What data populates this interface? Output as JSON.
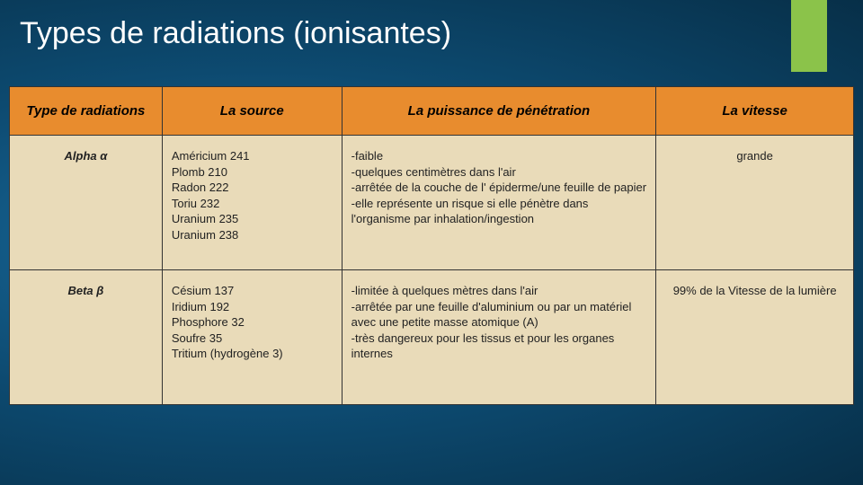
{
  "slide": {
    "title": "Types de radiations (ionisantes)",
    "accent_color": "#8bc34a"
  },
  "table": {
    "headers": {
      "type": "Type de radiations",
      "source": "La source",
      "penetration": "La puissance de pénétration",
      "vitesse": "La vitesse"
    },
    "rows": [
      {
        "type": "Alpha α",
        "source": "Américium 241\nPlomb 210\nRadon 222\nToriu 232\nUranium 235\nUranium 238",
        "penetration": "-faible\n-quelques centimètres dans l'air\n-arrêtée de la couche de l' épiderme/une feuille de papier\n-elle représente un risque si elle pénètre dans l'organisme par inhalation/ingestion",
        "vitesse": "grande"
      },
      {
        "type": "Beta β",
        "source": "Césium 137\nIridium 192\nPhosphore 32\nSoufre 35\nTritium (hydrogène 3)",
        "penetration": "-limitée à quelques mètres dans l'air\n-arrêtée par une feuille d'aluminium ou par un matériel avec une petite masse atomique (A)\n-très dangereux pour les tissus et pour les organes internes",
        "vitesse": "99% de la Vitesse de  la lumière"
      }
    ]
  }
}
